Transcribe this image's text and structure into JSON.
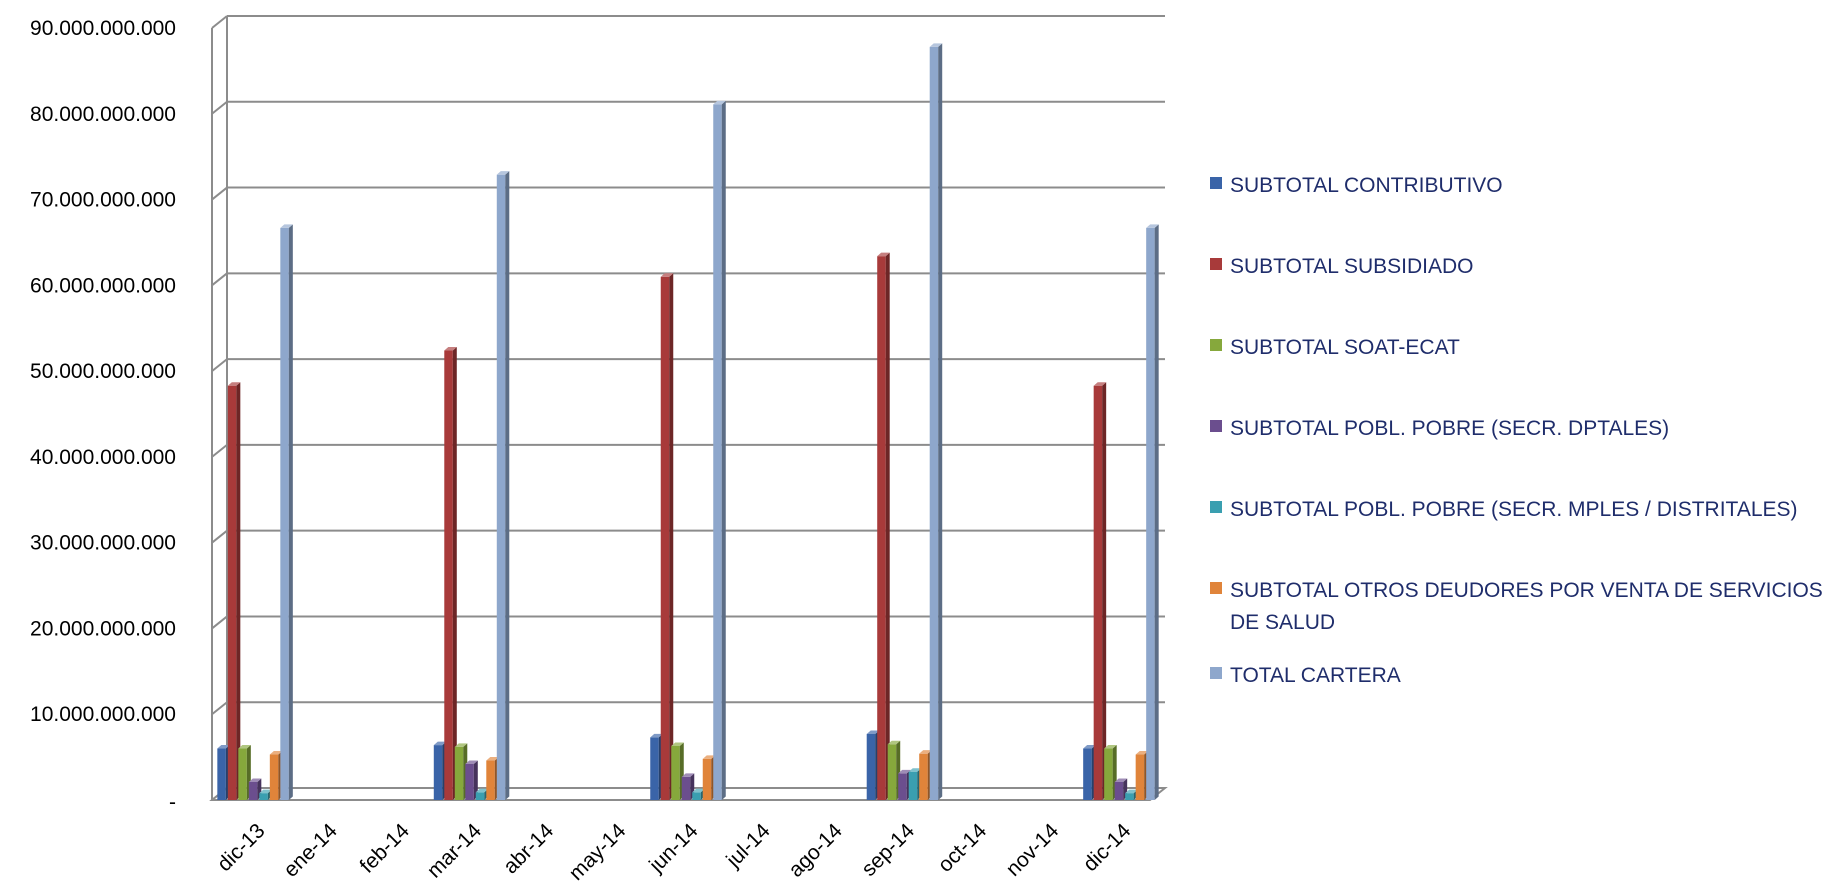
{
  "chart_data": {
    "type": "bar",
    "title": "",
    "xlabel": "",
    "ylabel": "",
    "ylim": [
      0,
      90000000000
    ],
    "y_ticks": [
      "-",
      "10.000.000.000",
      "20.000.000.000",
      "30.000.000.000",
      "40.000.000.000",
      "50.000.000.000",
      "60.000.000.000",
      "70.000.000.000",
      "80.000.000.000",
      "90.000.000.000"
    ],
    "grid": true,
    "legend_position": "right",
    "categories": [
      "dic-13",
      "ene-14",
      "feb-14",
      "mar-14",
      "abr-14",
      "may-14",
      "jun-14",
      "jul-14",
      "ago-14",
      "sep-14",
      "oct-14",
      "nov-14",
      "dic-14"
    ],
    "series": [
      {
        "name": "SUBTOTAL CONTRIBUTIVO",
        "color": "#3a64a8",
        "values": [
          6000000000,
          0,
          0,
          6400000000,
          0,
          0,
          7300000000,
          0,
          0,
          7700000000,
          0,
          0,
          6000000000
        ]
      },
      {
        "name": "SUBTOTAL SUBSIDIADO",
        "color": "#a83a3a",
        "values": [
          48300000000,
          0,
          0,
          52400000000,
          0,
          0,
          61000000000,
          0,
          0,
          63400000000,
          0,
          0,
          48300000000
        ]
      },
      {
        "name": "SUBTOTAL SOAT-ECAT",
        "color": "#86a83c",
        "values": [
          6000000000,
          0,
          0,
          6200000000,
          0,
          0,
          6300000000,
          0,
          0,
          6500000000,
          0,
          0,
          6000000000
        ]
      },
      {
        "name": "SUBTOTAL POBL. POBRE (SECR. DPTALES)",
        "color": "#6b4e8e",
        "values": [
          2100000000,
          0,
          0,
          4200000000,
          0,
          0,
          2700000000,
          0,
          0,
          3100000000,
          0,
          0,
          2100000000
        ]
      },
      {
        "name": "SUBTOTAL POBL. POBRE (SECR. MPLES / DISTRITALES)",
        "color": "#3a9fb0",
        "values": [
          800000000,
          0,
          0,
          900000000,
          0,
          0,
          900000000,
          0,
          0,
          3300000000,
          0,
          0,
          800000000
        ]
      },
      {
        "name": "SUBTOTAL OTROS DEUDORES POR VENTA DE SERVICIOS DE SALUD",
        "color": "#e0843a",
        "values": [
          5300000000,
          0,
          0,
          4600000000,
          0,
          0,
          4800000000,
          0,
          0,
          5400000000,
          0,
          0,
          5300000000
        ]
      },
      {
        "name": "TOTAL CARTERA",
        "color": "#8ea7cc",
        "values": [
          66700000000,
          0,
          0,
          72900000000,
          0,
          0,
          81100000000,
          0,
          0,
          87800000000,
          0,
          0,
          66700000000
        ]
      }
    ]
  }
}
